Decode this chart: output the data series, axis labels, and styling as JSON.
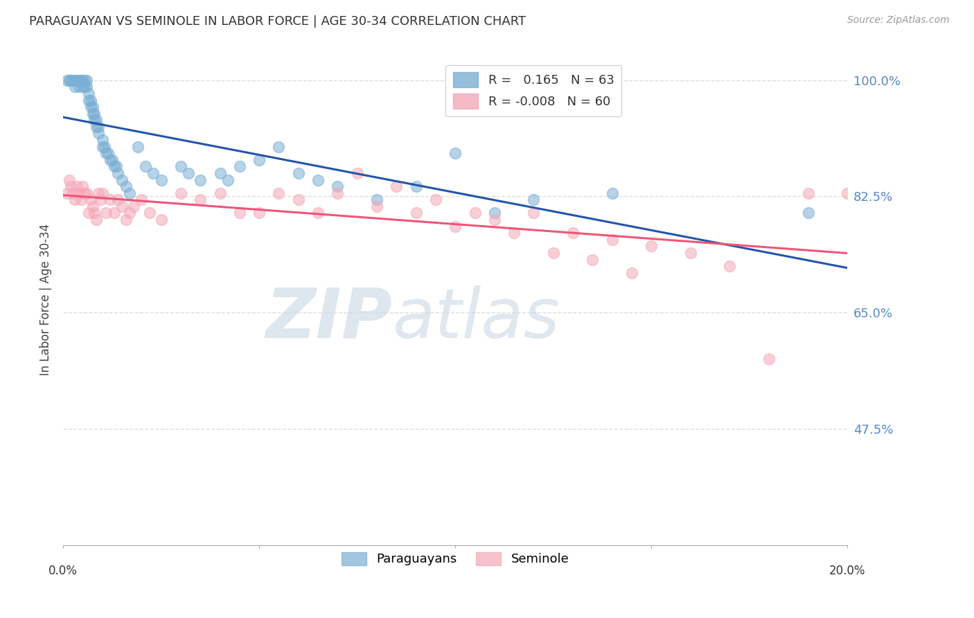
{
  "title": "PARAGUAYAN VS SEMINOLE IN LABOR FORCE | AGE 30-34 CORRELATION CHART",
  "source": "Source: ZipAtlas.com",
  "ylabel": "In Labor Force | Age 30-34",
  "xlim": [
    0.0,
    20.0
  ],
  "ylim": [
    30.0,
    104.0
  ],
  "yticks": [
    47.5,
    65.0,
    82.5,
    100.0
  ],
  "ytick_labels": [
    "47.5%",
    "65.0%",
    "82.5%",
    "100.0%"
  ],
  "xtick_positions": [
    0.0,
    5.0,
    10.0,
    15.0,
    20.0
  ],
  "xtick_labels": [
    "0.0%",
    "",
    "",
    "",
    "20.0%"
  ],
  "legend_blue_r": "0.165",
  "legend_blue_n": "63",
  "legend_pink_r": "-0.008",
  "legend_pink_n": "60",
  "blue_label": "Paraguayans",
  "pink_label": "Seminole",
  "blue_color": "#7BAFD4",
  "pink_color": "#F4A8B8",
  "blue_edge_color": "#5590C0",
  "pink_edge_color": "#E07090",
  "blue_line_color": "#2255AA",
  "pink_line_color": "#EE5577",
  "watermark_zip": "ZIP",
  "watermark_atlas": "atlas",
  "bg_color": "#FFFFFF",
  "grid_color": "#DDDDDD",
  "title_color": "#333333",
  "tick_color": "#5588CC",
  "blue_x": [
    0.1,
    0.15,
    0.2,
    0.25,
    0.3,
    0.3,
    0.35,
    0.4,
    0.4,
    0.45,
    0.5,
    0.5,
    0.55,
    0.55,
    0.6,
    0.6,
    0.65,
    0.65,
    0.7,
    0.7,
    0.75,
    0.75,
    0.8,
    0.8,
    0.85,
    0.85,
    0.9,
    0.9,
    1.0,
    1.0,
    1.05,
    1.1,
    1.15,
    1.2,
    1.25,
    1.3,
    1.35,
    1.4,
    1.5,
    1.6,
    1.7,
    1.9,
    2.1,
    2.3,
    2.5,
    3.0,
    3.2,
    3.5,
    4.0,
    4.2,
    4.5,
    5.0,
    5.5,
    6.0,
    6.5,
    7.0,
    8.0,
    9.0,
    10.0,
    11.0,
    12.0,
    14.0,
    19.0
  ],
  "blue_y": [
    100,
    100,
    100,
    100,
    100,
    99,
    100,
    100,
    99,
    100,
    100,
    99,
    100,
    99,
    100,
    99,
    98,
    97,
    97,
    96,
    96,
    95,
    95,
    94,
    94,
    93,
    93,
    92,
    91,
    90,
    90,
    89,
    89,
    88,
    88,
    87,
    87,
    86,
    85,
    84,
    83,
    90,
    87,
    86,
    85,
    87,
    86,
    85,
    86,
    85,
    87,
    88,
    90,
    86,
    85,
    84,
    82,
    84,
    89,
    80,
    82,
    83,
    80
  ],
  "pink_x": [
    0.1,
    0.15,
    0.2,
    0.25,
    0.3,
    0.35,
    0.4,
    0.45,
    0.5,
    0.55,
    0.6,
    0.65,
    0.7,
    0.75,
    0.8,
    0.85,
    0.9,
    0.95,
    1.0,
    1.1,
    1.2,
    1.3,
    1.4,
    1.5,
    1.6,
    1.7,
    1.8,
    2.0,
    2.2,
    2.5,
    3.0,
    3.5,
    4.0,
    4.5,
    5.0,
    5.5,
    6.0,
    6.5,
    7.0,
    8.0,
    9.0,
    10.0,
    11.0,
    12.0,
    13.0,
    14.0,
    15.0,
    16.0,
    17.0,
    18.0,
    19.0,
    20.0,
    7.5,
    8.5,
    9.5,
    10.5,
    11.5,
    12.5,
    13.5,
    14.5
  ],
  "pink_y": [
    83,
    85,
    84,
    83,
    82,
    84,
    83,
    82,
    84,
    83,
    83,
    80,
    82,
    81,
    80,
    79,
    83,
    82,
    83,
    80,
    82,
    80,
    82,
    81,
    79,
    80,
    81,
    82,
    80,
    79,
    83,
    82,
    83,
    80,
    80,
    83,
    82,
    80,
    83,
    81,
    80,
    78,
    79,
    80,
    77,
    76,
    75,
    74,
    72,
    58,
    83,
    83,
    86,
    84,
    82,
    80,
    77,
    74,
    73,
    71
  ]
}
